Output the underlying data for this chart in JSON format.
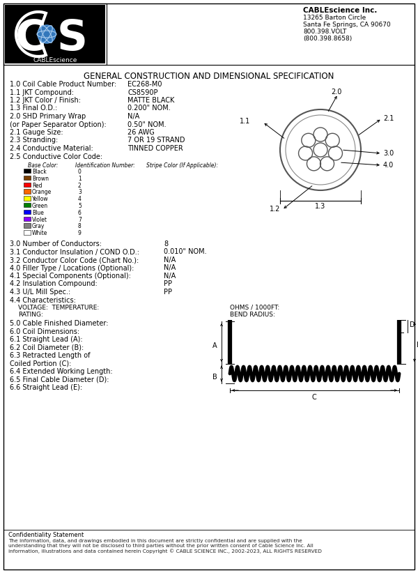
{
  "title": "GENERAL CONSTRUCTION AND DIMENSIONAL SPECIFICATION",
  "company_name": "CABLEscience Inc.",
  "company_address_lines": [
    "13265 Barton Circle",
    "Santa Fe Springs, CA 90670",
    "800.398.VOLT",
    "(800.398.8658)"
  ],
  "specs": [
    [
      "1.0 Coil Cable Product Number:",
      "EC268-M0"
    ],
    [
      "1.1 JKT Compound:",
      "CS8590P"
    ],
    [
      "1.2 JKT Color / Finish:",
      "MATTE BLACK"
    ],
    [
      "1.3 Final O.D.:",
      "0.200\" NOM."
    ],
    [
      "2.0 SHD Primary Wrap",
      "N/A"
    ],
    [
      "(or Paper Separator Option):",
      "0.50\" NOM."
    ],
    [
      "2.1 Gauge Size:",
      "26 AWG"
    ],
    [
      "2.3 Stranding:",
      "7 OR 19 STRAND"
    ],
    [
      "2.4 Conductive Material:",
      "TINNED COPPER"
    ],
    [
      "2.5 Conductive Color Code:",
      ""
    ]
  ],
  "color_table_headers": [
    "Base Color:",
    "Identification Number:",
    "Stripe Color (If Applicable):"
  ],
  "color_rows": [
    [
      "Black",
      "0"
    ],
    [
      "Brown",
      "1"
    ],
    [
      "Red",
      "2"
    ],
    [
      "Orange",
      "3"
    ],
    [
      "Yellow",
      "4"
    ],
    [
      "Green",
      "5"
    ],
    [
      "Blue",
      "6"
    ],
    [
      "Violet",
      "7"
    ],
    [
      "Gray",
      "8"
    ],
    [
      "White",
      "9"
    ]
  ],
  "color_swatches": [
    "#000000",
    "#7B3F00",
    "#FF0000",
    "#FF6600",
    "#FFFF00",
    "#008000",
    "#0000FF",
    "#8B00FF",
    "#808080",
    "#FFFFFF"
  ],
  "specs2": [
    [
      "3.0 Number of Conductors:",
      "8"
    ],
    [
      "3.1 Conductor Insulation / COND O.D.:",
      "0.010\" NOM."
    ],
    [
      "3.2 Conductor Color Code (Chart No.):",
      "N/A"
    ],
    [
      "4.0 Filler Type / Locations (Optional):",
      "N/A"
    ],
    [
      "4.1 Special Components (Optional):",
      "N/A"
    ],
    [
      "4.2 Insulation Compound:",
      "PP"
    ],
    [
      "4.3 U/L Mill Spec.:",
      "PP"
    ],
    [
      "4.4 Characteristics:",
      ""
    ]
  ],
  "volt_temp_label": "VOLTAGE:  TEMPERATURE:",
  "rating_label": "RATING:",
  "ohms_label": "OHMS / 1000FT:",
  "bend_label": "BEND RADIUS:",
  "specs3": [
    [
      "5.0 Cable Finished Diameter:",
      ""
    ],
    [
      "6.0 Coil Dimensions:",
      ""
    ],
    [
      "6.1 Straight Lead (A):",
      ""
    ],
    [
      "6.2 Coil Diameter (B):",
      ""
    ],
    [
      "6.3 Retracted Length of",
      ""
    ],
    [
      "Coiled Portion (C):",
      ""
    ],
    [
      "6.4 Extended Working Length:",
      ""
    ],
    [
      "6.5 Final Cable Diameter (D):",
      ""
    ],
    [
      "6.6 Straight Lead (E):",
      ""
    ]
  ],
  "confidentiality_title": "Confidentiality Statement",
  "confidentiality_body": "The information, data, and drawings embodied in this document are strictly confidential and are supplied with the\nunderstanding that they will not be disclosed to third parties without the prior written consent of Cable Science Inc. All\ninformation, illustrations and data contained herein Copyright © CABLE SCIENCE INC., 2002-2023, ALL RIGHTS RESERVED",
  "bg_color": "#FFFFFF"
}
